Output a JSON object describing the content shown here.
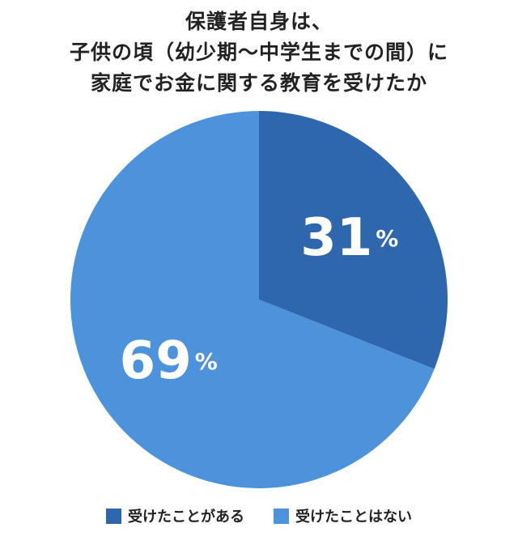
{
  "title_lines": [
    "保護者自身は、",
    "子供の頃（幼少期〜中学生までの間）に",
    "家庭でお金に関する教育を受けたか"
  ],
  "chart_data": {
    "type": "pie",
    "title": "保護者自身は、子供の頃（幼少期〜中学生までの間）に家庭でお金に関する教育を受けたか",
    "slices": [
      {
        "label": "受けたことがある",
        "value": 31,
        "display": "31",
        "unit": "%",
        "color": "#2e67ad"
      },
      {
        "label": "受けたことはない",
        "value": 69,
        "display": "69",
        "unit": "%",
        "color": "#4d93dc"
      }
    ],
    "start_angle": "12 o'clock",
    "direction": "clockwise",
    "legend_position": "bottom"
  }
}
